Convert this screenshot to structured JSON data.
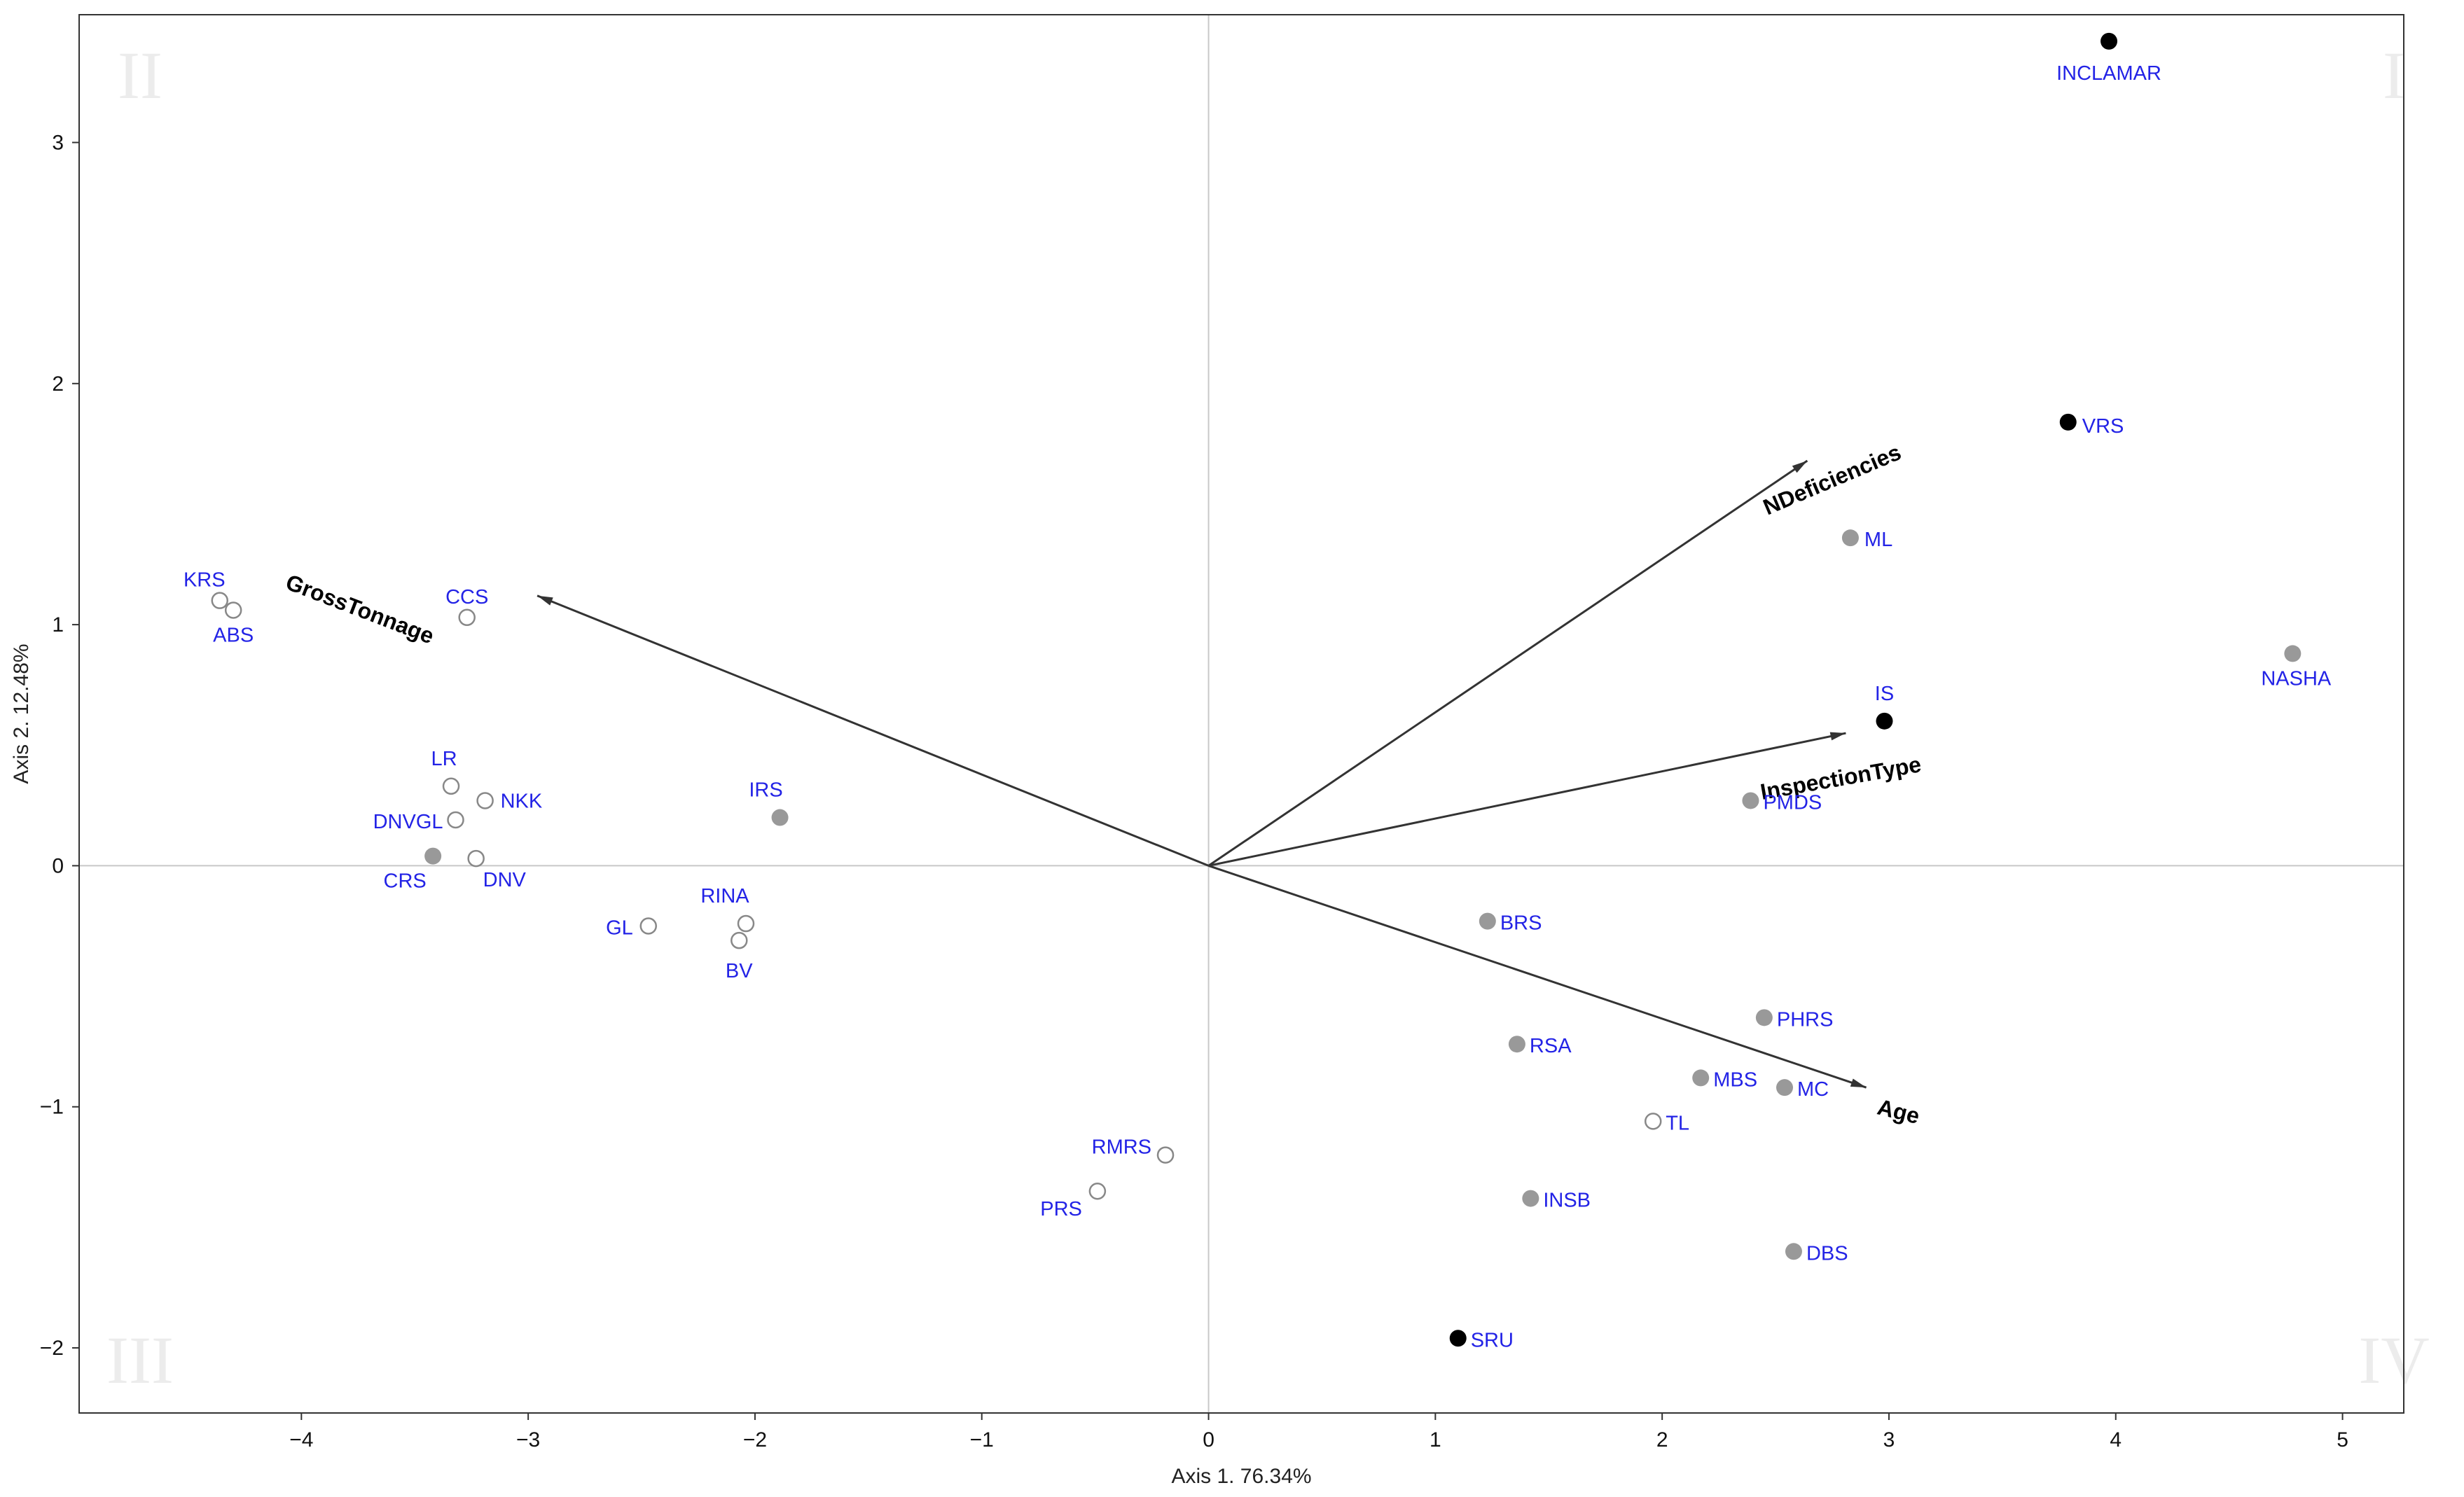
{
  "chart_data": {
    "type": "scatter",
    "subtype": "biplot",
    "xlabel": "Axis 1. 76.34%",
    "ylabel": "Axis 2. 12.48%",
    "xlim": [
      -4.98,
      5.27
    ],
    "ylim": [
      -2.27,
      3.53
    ],
    "xticks": [
      -4,
      -3,
      -2,
      -1,
      0,
      1,
      2,
      3,
      4,
      5
    ],
    "yticks": [
      -2,
      -1,
      0,
      1,
      2,
      3
    ],
    "grid": false,
    "zero_lines": true,
    "quadrants": [
      "I",
      "II",
      "III",
      "IV"
    ],
    "colors": {
      "label": "#2323e6",
      "filled_black": "#000000",
      "filled_gray": "#999999",
      "hollow_edge": "#888888",
      "vector": "#333333",
      "quadrant_text": "#ececec"
    },
    "points": [
      {
        "label": "INCLAMAR",
        "x": 3.97,
        "y": 3.42,
        "style": "black"
      },
      {
        "label": "VRS",
        "x": 3.79,
        "y": 1.84,
        "style": "black"
      },
      {
        "label": "ML",
        "x": 2.83,
        "y": 1.36,
        "style": "gray"
      },
      {
        "label": "NASHA",
        "x": 4.78,
        "y": 0.88,
        "style": "gray"
      },
      {
        "label": "IS",
        "x": 2.98,
        "y": 0.6,
        "style": "black"
      },
      {
        "label": "PMDS",
        "x": 2.39,
        "y": 0.27,
        "style": "gray"
      },
      {
        "label": "BRS",
        "x": 1.23,
        "y": -0.23,
        "style": "gray"
      },
      {
        "label": "PHRS",
        "x": 2.45,
        "y": -0.63,
        "style": "gray"
      },
      {
        "label": "RSA",
        "x": 1.36,
        "y": -0.74,
        "style": "gray"
      },
      {
        "label": "MBS",
        "x": 2.17,
        "y": -0.88,
        "style": "gray"
      },
      {
        "label": "MC",
        "x": 2.54,
        "y": -0.92,
        "style": "gray"
      },
      {
        "label": "TL",
        "x": 1.96,
        "y": -1.06,
        "style": "hollow"
      },
      {
        "label": "INSB",
        "x": 1.42,
        "y": -1.38,
        "style": "gray"
      },
      {
        "label": "DBS",
        "x": 2.58,
        "y": -1.6,
        "style": "gray"
      },
      {
        "label": "SRU",
        "x": 1.1,
        "y": -1.96,
        "style": "black"
      },
      {
        "label": "RMRS",
        "x": -0.19,
        "y": -1.2,
        "style": "hollow"
      },
      {
        "label": "PRS",
        "x": -0.49,
        "y": -1.35,
        "style": "hollow"
      },
      {
        "label": "KRS",
        "x": -4.36,
        "y": 1.1,
        "style": "hollow"
      },
      {
        "label": "ABS",
        "x": -4.3,
        "y": 1.06,
        "style": "hollow"
      },
      {
        "label": "CCS",
        "x": -3.27,
        "y": 1.03,
        "style": "hollow"
      },
      {
        "label": "LR",
        "x": -3.34,
        "y": 0.33,
        "style": "hollow"
      },
      {
        "label": "NKK",
        "x": -3.19,
        "y": 0.27,
        "style": "hollow"
      },
      {
        "label": "DNVGL",
        "x": -3.32,
        "y": 0.19,
        "style": "hollow"
      },
      {
        "label": "CRS",
        "x": -3.42,
        "y": 0.04,
        "style": "gray"
      },
      {
        "label": "DNV",
        "x": -3.23,
        "y": 0.03,
        "style": "hollow"
      },
      {
        "label": "IRS",
        "x": -1.89,
        "y": 0.2,
        "style": "gray"
      },
      {
        "label": "RINA",
        "x": -2.04,
        "y": -0.24,
        "style": "hollow"
      },
      {
        "label": "GL",
        "x": -2.47,
        "y": -0.25,
        "style": "hollow"
      },
      {
        "label": "BV",
        "x": -2.07,
        "y": -0.31,
        "style": "hollow"
      }
    ],
    "vectors": [
      {
        "label": "NDeficiencies",
        "x": 2.64,
        "y": 1.68
      },
      {
        "label": "GrossTonnage",
        "x": -2.96,
        "y": 1.12
      },
      {
        "label": "InspectionType",
        "x": 2.81,
        "y": 0.55
      },
      {
        "label": "Age",
        "x": 2.9,
        "y": -0.92
      }
    ]
  }
}
